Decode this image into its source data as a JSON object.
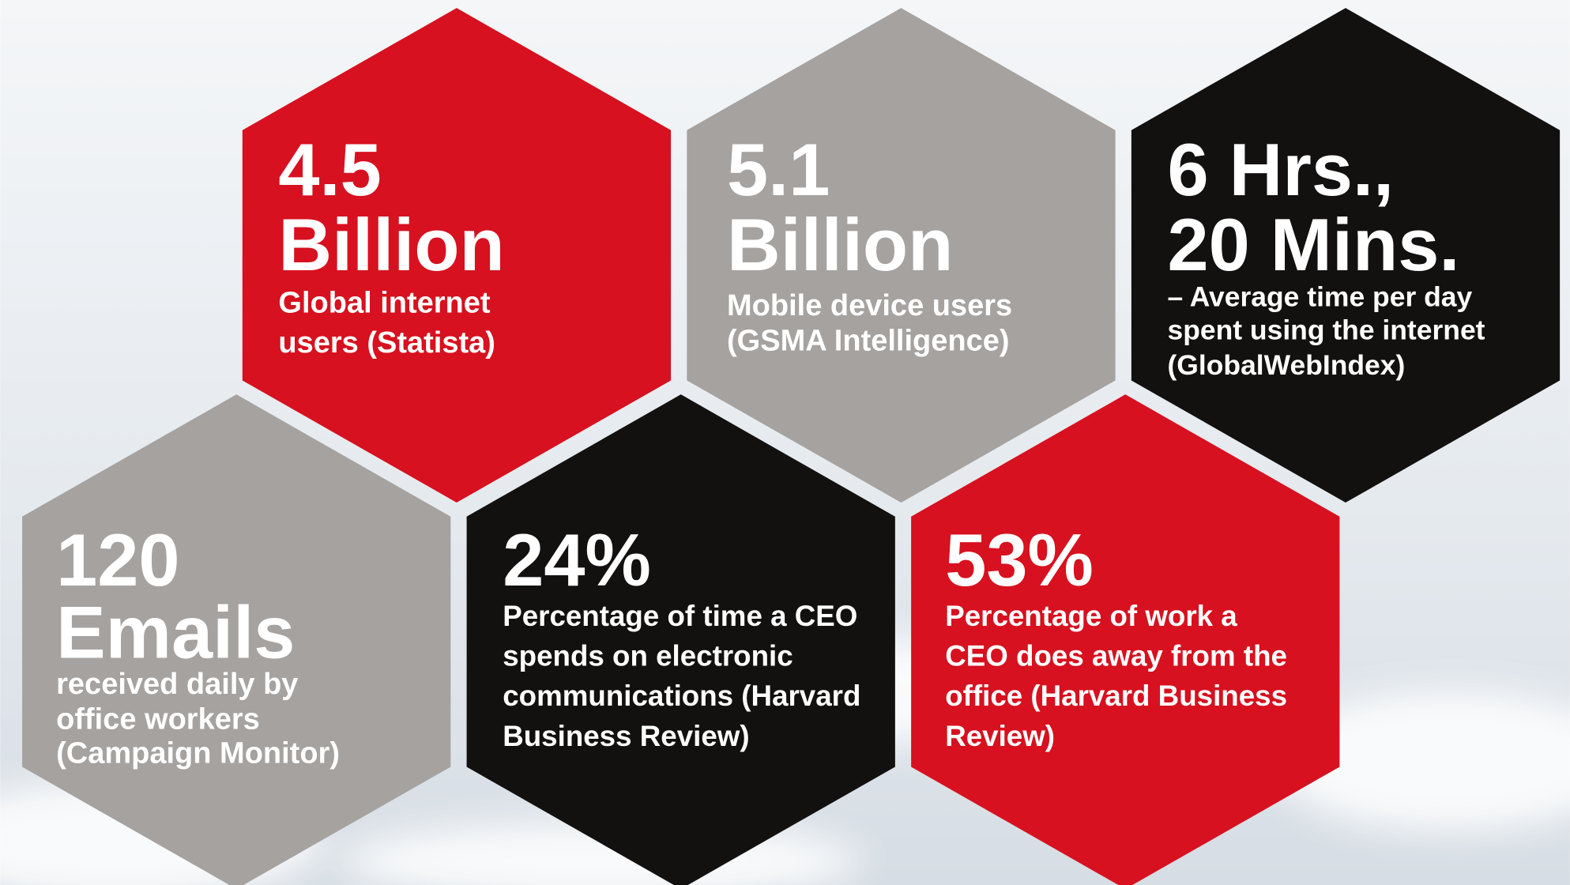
{
  "cells": [
    {
      "headline": [
        "4.5",
        "Billion"
      ],
      "description": [
        "Global internet",
        "users (Statista)"
      ]
    },
    {
      "headline": [
        "5.1",
        "Billion"
      ],
      "description": [
        "Mobile device users",
        "(GSMA Intelligence)"
      ]
    },
    {
      "headline": [
        "6 Hrs.,",
        "20 Mins."
      ],
      "description": [
        "– Average time per day",
        "spent using the internet",
        "(GlobalWebIndex)"
      ]
    },
    {
      "headline": [
        "120",
        "Emails"
      ],
      "description": [
        "received daily by",
        "office workers",
        "(Campaign Monitor)"
      ]
    },
    {
      "headline": [
        "24%"
      ],
      "description": [
        "Percentage of time a CEO",
        "spends on electronic",
        "communications (Harvard",
        "Business Review)"
      ]
    },
    {
      "headline": [
        "53%"
      ],
      "description": [
        "Percentage of work a",
        "CEO does away from the",
        "office  (Harvard Business",
        "Review)"
      ]
    }
  ]
}
